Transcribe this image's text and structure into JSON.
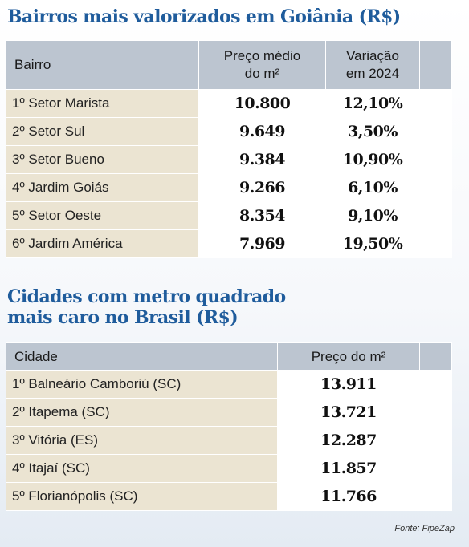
{
  "bairros": {
    "title": "Bairros mais valorizados em Goiânia (R$)",
    "headers": {
      "bairro": "Bairro",
      "preco_line1": "Preço médio",
      "preco_line2": "do m²",
      "variacao_line1": "Variação",
      "variacao_line2": "em 2024"
    },
    "rows": [
      {
        "name": "1º Setor Marista",
        "preco": "10.800",
        "variacao": "12,10%"
      },
      {
        "name": "2º Setor Sul",
        "preco": "9.649",
        "variacao": "3,50%"
      },
      {
        "name": "3º Setor Bueno",
        "preco": "9.384",
        "variacao": "10,90%"
      },
      {
        "name": "4º Jardim Goiás",
        "preco": "9.266",
        "variacao": "6,10%"
      },
      {
        "name": "5º Setor Oeste",
        "preco": "8.354",
        "variacao": "9,10%"
      },
      {
        "name": "6º Jardim América",
        "preco": "7.969",
        "variacao": "19,50%"
      }
    ]
  },
  "cidades": {
    "title_line1": "Cidades com metro quadrado",
    "title_line2": "mais caro no Brasil (R$)",
    "headers": {
      "cidade": "Cidade",
      "preco": "Preço do m²"
    },
    "rows": [
      {
        "name": "1º Balneário Camboriú (SC)",
        "preco": "13.911"
      },
      {
        "name": "2º Itapema (SC)",
        "preco": "13.721"
      },
      {
        "name": "3º Vitória (ES)",
        "preco": "12.287"
      },
      {
        "name": "4º Itajaí (SC)",
        "preco": "11.857"
      },
      {
        "name": "5º Florianópolis (SC)",
        "preco": "11.766"
      }
    ]
  },
  "source": "Fonte: FipeZap",
  "colors": {
    "title": "#1f5c9c",
    "header_bg": "#bcc5d0",
    "name_cell_bg": "#ebe4d2",
    "value_cell_bg": "#ffffff"
  }
}
